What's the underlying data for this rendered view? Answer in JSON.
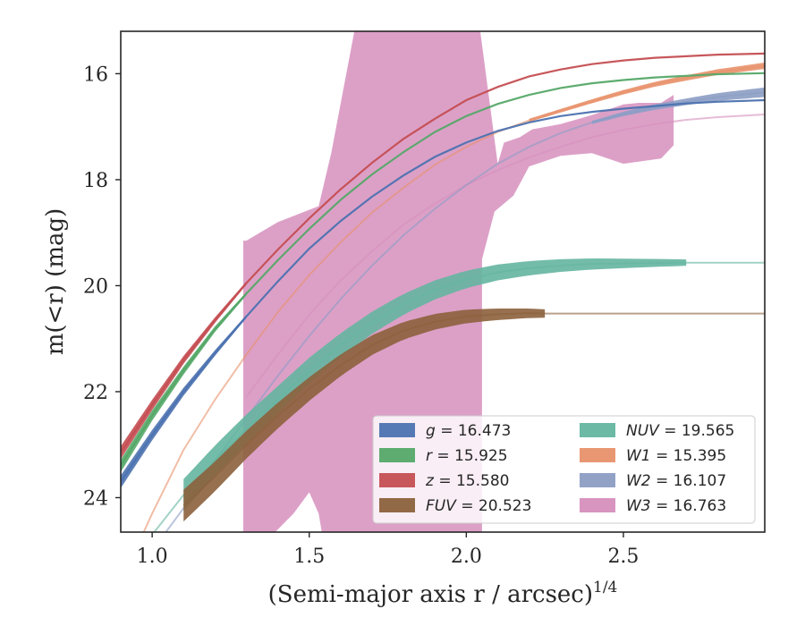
{
  "chart_data": {
    "type": "line",
    "title": "",
    "xlabel": "(Semi-major axis r / arcsec)",
    "xlabel_exponent": "1/4",
    "ylabel": "m(<r) (mag)",
    "xlim": [
      0.9,
      2.95
    ],
    "ylim": [
      24.65,
      15.2
    ],
    "y_inverted": true,
    "x_ticks": [
      {
        "value": 1.0,
        "label": "1.0"
      },
      {
        "value": 1.5,
        "label": "1.5"
      },
      {
        "value": 2.0,
        "label": "2.0"
      },
      {
        "value": 2.5,
        "label": "2.5"
      }
    ],
    "y_ticks": [
      {
        "value": 16,
        "label": "16"
      },
      {
        "value": 18,
        "label": "18"
      },
      {
        "value": 20,
        "label": "20"
      },
      {
        "value": 22,
        "label": "22"
      },
      {
        "value": 24,
        "label": "24"
      }
    ],
    "grid": false,
    "legend": {
      "placement": "bottom-right",
      "columns": 2
    },
    "series": [
      {
        "name": "g",
        "legend_value": "16.473",
        "color": "#4c72b0",
        "x": [
          0.9,
          1.0,
          1.1,
          1.2,
          1.3,
          1.4,
          1.5,
          1.6,
          1.7,
          1.8,
          1.9,
          2.0,
          2.1,
          2.2,
          2.3,
          2.4,
          2.5,
          2.6,
          2.7,
          2.8,
          2.95
        ],
        "y": [
          23.7,
          22.82,
          22.0,
          21.27,
          20.58,
          19.92,
          19.3,
          18.78,
          18.32,
          17.92,
          17.57,
          17.3,
          17.08,
          16.92,
          16.8,
          16.72,
          16.66,
          16.61,
          16.56,
          16.53,
          16.5
        ],
        "band_x": [
          0.9,
          1.3
        ],
        "band_half_width": [
          0.12,
          0.03
        ]
      },
      {
        "name": "r",
        "legend_value": "15.925",
        "color": "#55a868",
        "x": [
          0.9,
          1.0,
          1.1,
          1.2,
          1.3,
          1.4,
          1.5,
          1.6,
          1.7,
          1.8,
          1.9,
          2.0,
          2.1,
          2.2,
          2.3,
          2.4,
          2.5,
          2.6,
          2.7,
          2.8,
          2.95
        ],
        "y": [
          23.4,
          22.45,
          21.6,
          20.82,
          20.15,
          19.52,
          18.93,
          18.38,
          17.9,
          17.48,
          17.1,
          16.8,
          16.57,
          16.4,
          16.27,
          16.18,
          16.12,
          16.07,
          16.04,
          16.01,
          15.99
        ],
        "band_x": [
          0.9,
          1.3
        ],
        "band_half_width": [
          0.12,
          0.03
        ]
      },
      {
        "name": "z",
        "legend_value": "15.580",
        "color": "#c44e52",
        "x": [
          0.9,
          1.0,
          1.1,
          1.2,
          1.3,
          1.4,
          1.5,
          1.6,
          1.7,
          1.8,
          1.9,
          2.0,
          2.1,
          2.2,
          2.3,
          2.4,
          2.5,
          2.6,
          2.7,
          2.8,
          2.95
        ],
        "y": [
          23.15,
          22.25,
          21.4,
          20.65,
          19.95,
          19.32,
          18.73,
          18.18,
          17.68,
          17.23,
          16.85,
          16.5,
          16.25,
          16.05,
          15.92,
          15.82,
          15.75,
          15.7,
          15.67,
          15.64,
          15.62
        ],
        "band_x": [
          0.9,
          1.3
        ],
        "band_half_width": [
          0.12,
          0.03
        ]
      },
      {
        "name": "FUV",
        "legend_value": "20.523",
        "color": "#8c613c",
        "x": [
          1.1,
          1.2,
          1.3,
          1.4,
          1.5,
          1.6,
          1.7,
          1.8,
          1.9,
          2.0,
          2.1,
          2.2,
          2.25,
          2.4,
          2.6,
          2.8,
          2.95
        ],
        "y": [
          24.15,
          23.6,
          23.0,
          22.45,
          21.95,
          21.5,
          21.12,
          20.85,
          20.68,
          20.58,
          20.54,
          20.52,
          20.525,
          20.525,
          20.525,
          20.525,
          20.525
        ],
        "band_x": [
          1.1,
          2.25
        ],
        "band_half_width": [
          0.3,
          0.08
        ]
      },
      {
        "name": "NUV",
        "legend_value": "19.565",
        "color": "#64b5a0",
        "x": [
          0.9,
          1.0,
          1.1,
          1.2,
          1.3,
          1.4,
          1.5,
          1.6,
          1.7,
          1.8,
          1.9,
          2.0,
          2.1,
          2.2,
          2.3,
          2.4,
          2.5,
          2.6,
          2.7,
          2.8,
          2.95
        ],
        "y": [
          25.6,
          24.7,
          23.95,
          23.3,
          22.7,
          22.15,
          21.6,
          21.12,
          20.7,
          20.35,
          20.08,
          19.88,
          19.75,
          19.67,
          19.62,
          19.59,
          19.58,
          19.57,
          19.565,
          19.565,
          19.565
        ],
        "band_x": [
          1.1,
          2.7
        ],
        "band_half_width": [
          0.3,
          0.06
        ]
      },
      {
        "name": "W1",
        "legend_value": "15.395",
        "color": "#e8916a",
        "x": [
          0.9,
          1.0,
          1.1,
          1.2,
          1.3,
          1.4,
          1.5,
          1.6,
          1.7,
          1.8,
          1.9,
          2.0,
          2.1,
          2.2,
          2.3,
          2.4,
          2.5,
          2.6,
          2.7,
          2.8,
          2.95
        ],
        "y": [
          25.6,
          24.3,
          23.1,
          22.15,
          21.3,
          20.5,
          19.8,
          19.18,
          18.62,
          18.15,
          17.72,
          17.38,
          17.1,
          16.88,
          16.7,
          16.52,
          16.35,
          16.2,
          16.08,
          15.97,
          15.85
        ],
        "band_x": [
          2.2,
          2.95
        ],
        "band_half_width": [
          0.03,
          0.06
        ]
      },
      {
        "name": "W2",
        "legend_value": "16.107",
        "color": "#8c9dc4",
        "x": [
          0.9,
          1.0,
          1.1,
          1.2,
          1.3,
          1.4,
          1.5,
          1.6,
          1.7,
          1.8,
          1.9,
          2.0,
          2.1,
          2.2,
          2.3,
          2.4,
          2.5,
          2.6,
          2.7,
          2.8,
          2.95
        ],
        "y": [
          25.9,
          25.0,
          24.2,
          23.3,
          22.5,
          21.7,
          20.95,
          20.25,
          19.62,
          19.05,
          18.55,
          18.1,
          17.7,
          17.38,
          17.12,
          16.92,
          16.76,
          16.63,
          16.53,
          16.44,
          16.35
        ],
        "band_x": [
          2.4,
          2.95
        ],
        "band_half_width": [
          0.03,
          0.09
        ]
      },
      {
        "name": "W3",
        "legend_value": "16.763",
        "color": "#d68fbd",
        "x": [
          1.3,
          1.4,
          1.5,
          1.6,
          1.7,
          1.8,
          1.9,
          2.0,
          2.1,
          2.2,
          2.3,
          2.4,
          2.5,
          2.6,
          2.7,
          2.8,
          2.95
        ],
        "y": [
          22.1,
          21.3,
          20.55,
          19.9,
          19.35,
          18.85,
          18.45,
          18.1,
          17.82,
          17.58,
          17.38,
          17.2,
          17.06,
          16.95,
          16.87,
          16.82,
          16.77
        ],
        "band": {
          "x": [
            1.29,
            1.3,
            1.4,
            1.53,
            1.57,
            1.65,
            1.72,
            1.8,
            1.9,
            1.97,
            2.04,
            2.1,
            2.12,
            2.17,
            2.21,
            2.3,
            2.4,
            2.5,
            2.55,
            2.62,
            2.66,
            2.66,
            2.62,
            2.5,
            2.4,
            2.3,
            2.2,
            2.15,
            2.09,
            2.05,
            2.05,
            2.0,
            1.9,
            1.8,
            1.7,
            1.6,
            1.55,
            1.53,
            1.5,
            1.45,
            1.4,
            1.35,
            1.3,
            1.29
          ],
          "y": [
            19.15,
            19.15,
            18.8,
            18.5,
            17.5,
            15.0,
            15.0,
            15.0,
            15.0,
            15.0,
            15.0,
            17.7,
            17.3,
            17.2,
            17.05,
            16.95,
            16.78,
            16.58,
            16.55,
            16.55,
            16.4,
            17.35,
            17.6,
            17.7,
            17.5,
            17.55,
            17.75,
            18.3,
            18.6,
            19.5,
            25.0,
            25.0,
            25.0,
            25.0,
            25.0,
            25.0,
            25.0,
            24.3,
            23.9,
            24.3,
            24.6,
            24.9,
            25.0,
            25.0
          ]
        }
      }
    ]
  }
}
